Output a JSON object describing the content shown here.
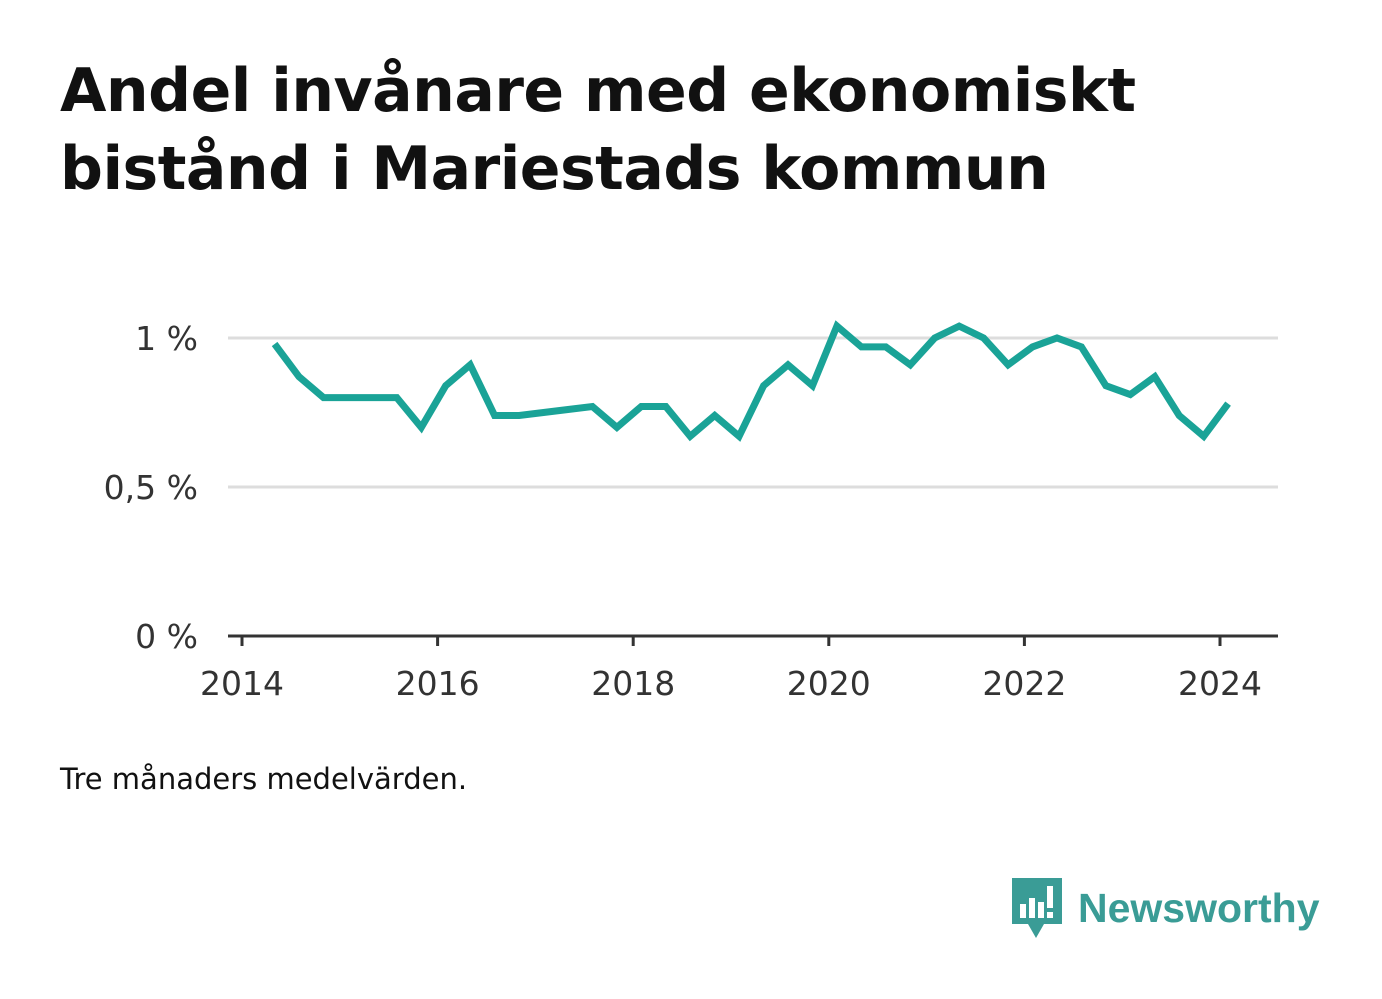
{
  "title": "Andel invånare med ekonomiskt bistånd i Mariestads kommun",
  "note": "Tre månaders medelvärden.",
  "brand": {
    "name": "Newsworthy",
    "color": "#3a9c96",
    "icon": "newsworthy-logo-icon"
  },
  "colors": {
    "line": "#1aa397",
    "grid": "#dddddd",
    "axis": "#333333"
  },
  "chart_data": {
    "type": "line",
    "title": "Andel invånare med ekonomiskt bistånd i Mariestads kommun",
    "xlabel": "",
    "ylabel": "",
    "xlim": [
      2014.0,
      2024.6
    ],
    "ylim": [
      0,
      1.0
    ],
    "x_ticks": [
      2014,
      2016,
      2018,
      2020,
      2022,
      2024
    ],
    "x_tick_labels": [
      "2014",
      "2016",
      "2018",
      "2020",
      "2022",
      "2024"
    ],
    "y_ticks": [
      0,
      0.5,
      1.0
    ],
    "y_tick_labels": [
      "0 %",
      "0,5 %",
      "1 %"
    ],
    "grid": true,
    "series": [
      {
        "x": [
          "2014-05",
          "2014-08",
          "2014-11",
          "2015-02",
          "2015-05",
          "2015-08",
          "2015-11",
          "2016-02",
          "2016-05",
          "2016-08",
          "2016-11",
          "2017-02",
          "2017-05",
          "2017-08",
          "2017-11",
          "2018-02",
          "2018-05",
          "2018-08",
          "2018-11",
          "2019-02",
          "2019-05",
          "2019-08",
          "2019-11",
          "2020-02",
          "2020-05",
          "2020-08",
          "2020-11",
          "2021-02",
          "2021-05",
          "2021-08",
          "2021-11",
          "2022-02",
          "2022-05",
          "2022-08",
          "2022-11",
          "2023-02",
          "2023-05",
          "2023-08",
          "2023-11",
          "2024-02"
        ],
        "values": [
          0.98,
          0.87,
          0.8,
          0.8,
          0.8,
          0.8,
          0.7,
          0.84,
          0.91,
          0.74,
          0.74,
          0.75,
          0.76,
          0.77,
          0.7,
          0.77,
          0.77,
          0.67,
          0.74,
          0.67,
          0.84,
          0.91,
          0.84,
          1.04,
          0.97,
          0.97,
          0.91,
          1.0,
          1.04,
          1.0,
          0.91,
          0.97,
          1.0,
          0.97,
          0.84,
          0.81,
          0.87,
          0.74,
          0.67,
          0.78
        ]
      }
    ]
  }
}
